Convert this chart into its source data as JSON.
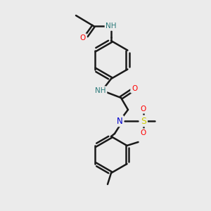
{
  "bg_color": "#ebebeb",
  "line_color": "#1a1a1a",
  "bond_width": 1.8,
  "figsize": [
    3.0,
    3.0
  ],
  "dpi": 100,
  "atom_colors": {
    "O": "#ff0000",
    "N": "#0000cc",
    "NH": "#2a7a7a",
    "S": "#cccc00",
    "C": "#1a1a1a"
  }
}
